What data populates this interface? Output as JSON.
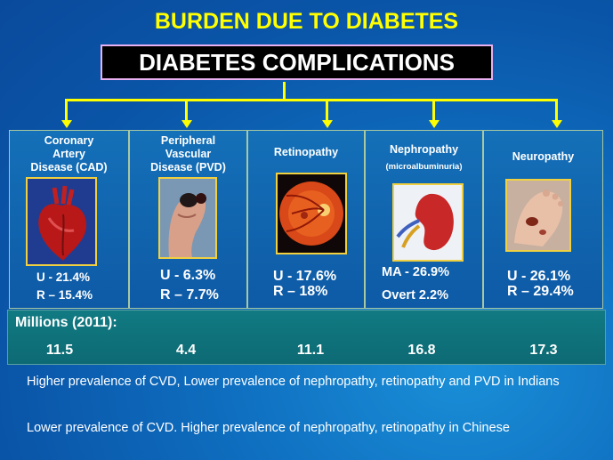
{
  "title": "BURDEN DUE TO DIABETES",
  "header": "DIABETES COMPLICATIONS",
  "columns": [
    {
      "label_lines": [
        "Coronary",
        "Artery",
        "Disease  (CAD)"
      ],
      "u": "U - 21.4%",
      "r": "R – 15.4%"
    },
    {
      "label_lines": [
        "Peripheral",
        "Vascular",
        "Disease  (PVD)"
      ],
      "u": "U - 6.3%",
      "r": "R – 7.7%"
    },
    {
      "label_lines": [
        "Retinopathy"
      ],
      "u": "U - 17.6%",
      "r": "R – 18%"
    },
    {
      "label_lines": [
        "Nephropathy"
      ],
      "sub": "(microalbuminuria)",
      "u": "MA - 26.9%",
      "r": "Overt 2.2%"
    },
    {
      "label_lines": [
        "Neuropathy"
      ],
      "u": "U -  26.1%",
      "r": "R – 29.4%"
    }
  ],
  "millions": {
    "label": "Millions (2011):",
    "values": [
      "11.5",
      "4.4",
      "11.1",
      "16.8",
      "17.3"
    ]
  },
  "notes": [
    "Higher prevalence of CVD, Lower prevalence of nephropathy, retinopathy and PVD in Indians",
    "Lower prevalence of CVD. Higher prevalence of nephropathy, retinopathy  in Chinese"
  ],
  "icons": [
    "heart-icon",
    "gangrene-foot-icon",
    "retina-icon",
    "kidney-icon",
    "neuropathic-foot-icon"
  ],
  "colors": {
    "title": "#ffff00",
    "connector": "#ffff00",
    "background": "#0f6fc0"
  }
}
